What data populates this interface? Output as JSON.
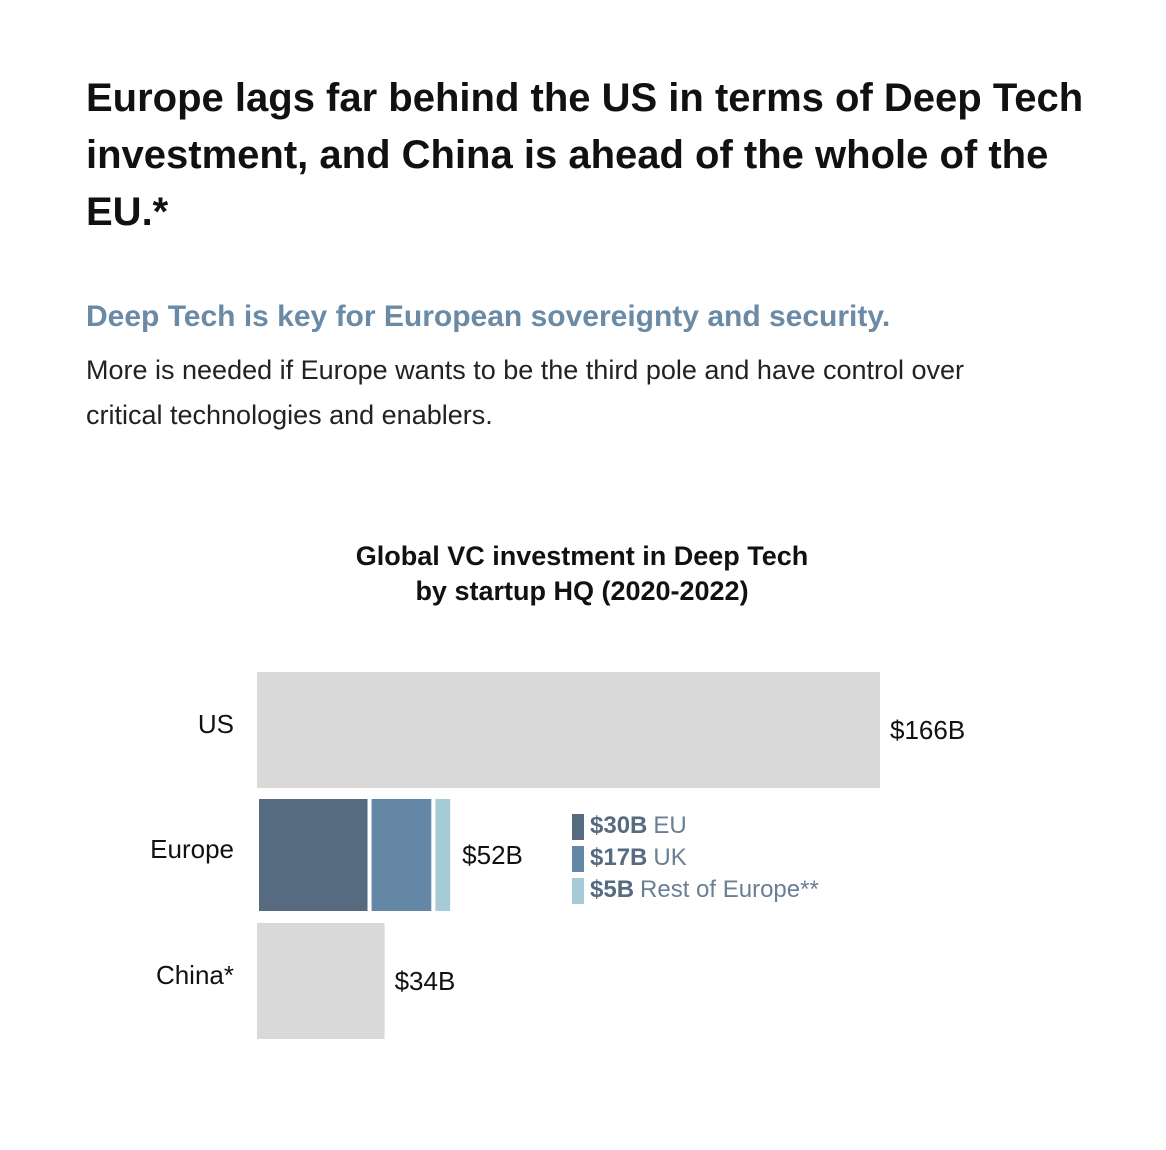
{
  "header": {
    "title": "Europe lags far behind the US in terms of Deep Tech investment, and China is ahead of the whole of the EU.*",
    "subtitle": "Deep Tech is key for European sovereignty and security.",
    "body": "More is needed if Europe wants to be the third pole and have control over critical technologies and enablers."
  },
  "chart_data": {
    "type": "bar",
    "orientation": "horizontal",
    "title": [
      "Global VC investment in Deep Tech",
      "by startup HQ (2020-2022)"
    ],
    "color": "#d9d9d9",
    "bars": [
      {
        "category": "US",
        "value": 166,
        "value_label": "$166B"
      },
      {
        "category": "Europe",
        "value": 52,
        "value_label": "$52B",
        "segments": [
          {
            "name": "EU",
            "value": 30,
            "value_label": "$30B",
            "color": "#566a80"
          },
          {
            "name": "UK",
            "value": 17,
            "value_label": "$17B",
            "color": "#6587a6"
          },
          {
            "name": "Rest of Europe**",
            "value": 5,
            "value_label": "$5B",
            "color": "#a6cbd6"
          }
        ]
      },
      {
        "category": "China*",
        "value": 34,
        "value_label": "$34B"
      }
    ]
  }
}
